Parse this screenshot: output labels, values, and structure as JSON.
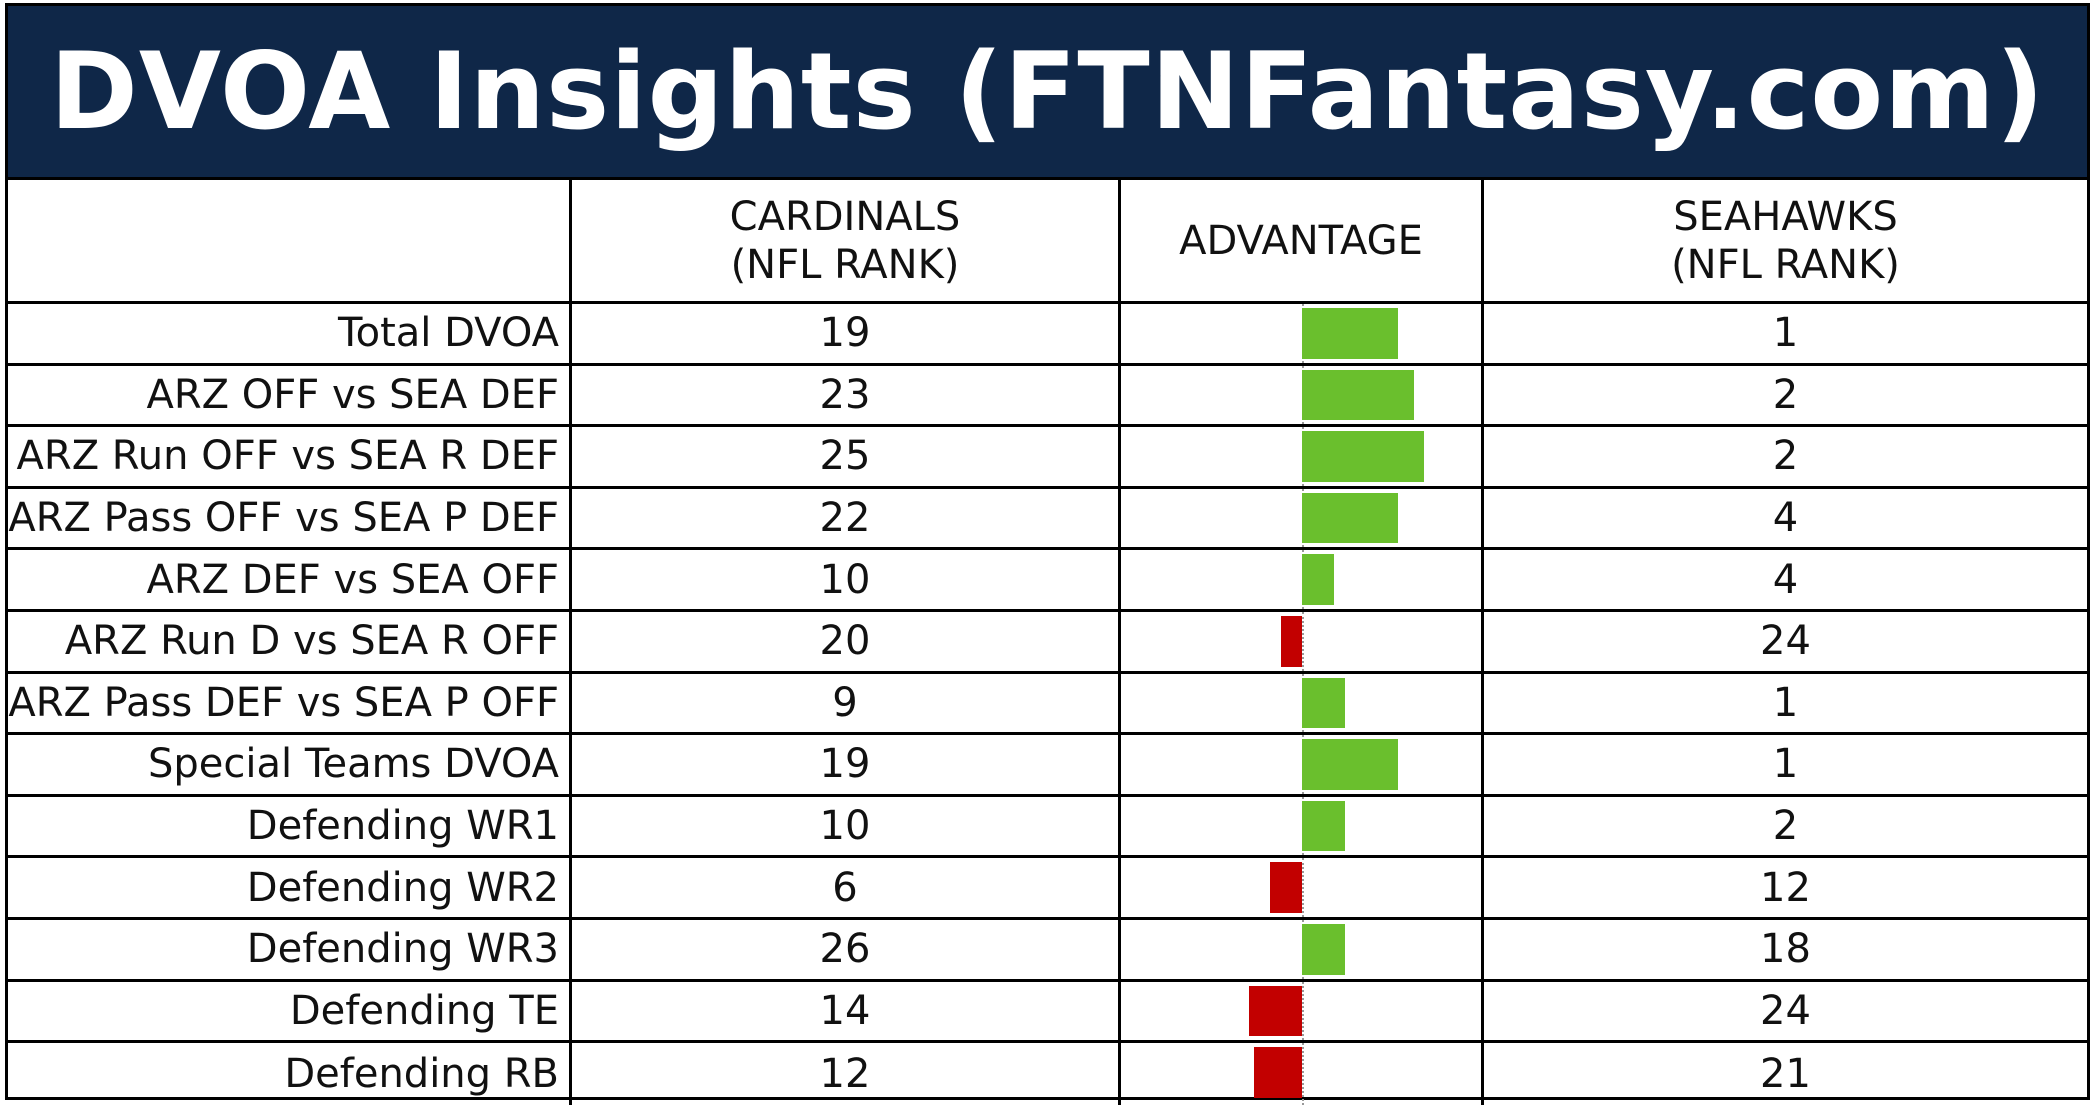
{
  "title": "DVOA Insights (FTNFantasy.com)",
  "headers": {
    "team_a_line1": "CARDINALS",
    "team_a_line2": "(NFL RANK)",
    "advantage": "ADVANTAGE",
    "team_b_line1": "SEAHAWKS",
    "team_b_line2": "(NFL RANK)"
  },
  "colors": {
    "banner": "#0f2748",
    "positive": "#6abf2d",
    "negative": "#c20000"
  },
  "chart_data": {
    "type": "table",
    "columns": [
      "",
      "CARDINALS (NFL RANK)",
      "ADVANTAGE",
      "SEAHAWKS (NFL RANK)"
    ],
    "rows": [
      {
        "label": "Total DVOA",
        "cardinals": "19",
        "seahawks": "1",
        "advantage": 18
      },
      {
        "label": "ARZ OFF vs SEA DEF",
        "cardinals": "23",
        "seahawks": "2",
        "advantage": 21
      },
      {
        "label": "ARZ Run OFF vs SEA R DEF",
        "cardinals": "25",
        "seahawks": "2",
        "advantage": 23
      },
      {
        "label": "ARZ Pass OFF vs SEA P DEF",
        "cardinals": "22",
        "seahawks": "4",
        "advantage": 18
      },
      {
        "label": "ARZ DEF vs SEA OFF",
        "cardinals": "10",
        "seahawks": "4",
        "advantage": 6
      },
      {
        "label": "ARZ Run D vs SEA R OFF",
        "cardinals": "20",
        "seahawks": "24",
        "advantage": -4
      },
      {
        "label": "ARZ Pass DEF vs SEA P OFF",
        "cardinals": "9",
        "seahawks": "1",
        "advantage": 8
      },
      {
        "label": "Special Teams DVOA",
        "cardinals": "19",
        "seahawks": "1",
        "advantage": 18
      },
      {
        "label": "Defending WR1",
        "cardinals": "10",
        "seahawks": "2",
        "advantage": 8
      },
      {
        "label": "Defending WR2",
        "cardinals": "6",
        "seahawks": "12",
        "advantage": -6
      },
      {
        "label": "Defending WR3",
        "cardinals": "26",
        "seahawks": "18",
        "advantage": 8
      },
      {
        "label": "Defending TE",
        "cardinals": "14",
        "seahawks": "24",
        "advantage": -10
      },
      {
        "label": "Defending RB",
        "cardinals": "12",
        "seahawks": "21",
        "advantage": -9
      }
    ],
    "advantage_range": [
      -31,
      31
    ]
  }
}
